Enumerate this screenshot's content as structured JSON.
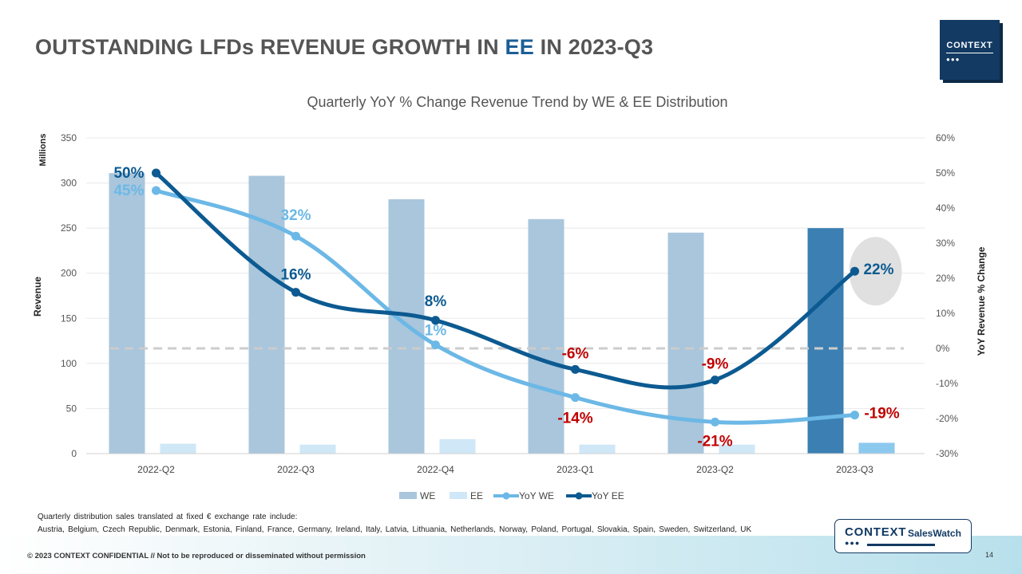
{
  "slide": {
    "title_pre": "OUTSTANDING LFDs REVENUE GROWTH IN",
    "title_hl": "EE",
    "title_post": "IN 2023-Q3",
    "page_number": "14",
    "footer_text": "© 2023 CONTEXT CONFIDENTIAL // Not to be reproduced or disseminated without permission",
    "note_line1": "Quarterly distribution sales translated at fixed € exchange rate include:",
    "note_line2": "Austria, Belgium, Czech Republic, Denmark, Estonia, Finland, France, Germany, Ireland, Italy, Latvia, Lithuania, Netherlands, Norway, Poland, Portugal, Slovakia, Spain, Sweden, Switzerland, UK",
    "logo_text": "CONTEXT",
    "logo_dots": "●●●",
    "saleswatch_brand": "CONTEXT",
    "saleswatch_label": "SalesWatch",
    "saleswatch_dots": "●●●"
  },
  "colors": {
    "we_bar": "#a9c6dc",
    "ee_bar": "#cfe7f6",
    "ee_bar_highlight": "#3b7fb3",
    "we_bar_highlight": "#8cc9ee",
    "yoy_we": "#6cb8e6",
    "yoy_ee": "#0c5a91",
    "negative_label": "#c00000",
    "zero_line": "#cccccc",
    "highlight_circle": "#e0e0e0"
  },
  "chart_data": {
    "type": "bar",
    "title": "Quarterly YoY % Change Revenue Trend by WE & EE Distribution",
    "categories": [
      "2022-Q2",
      "2022-Q3",
      "2022-Q4",
      "2023-Q1",
      "2023-Q2",
      "2023-Q3"
    ],
    "ylabel": "Revenue",
    "ylabel_units": "Millions",
    "y2label": "YoY Revenue % Change",
    "ylim": [
      0,
      350
    ],
    "y_ticks": [
      0,
      50,
      100,
      150,
      200,
      250,
      300,
      350
    ],
    "y2lim": [
      -30,
      60
    ],
    "y2_ticks": [
      -30,
      -20,
      -10,
      0,
      10,
      20,
      30,
      40,
      50,
      60
    ],
    "y2_tick_labels": [
      "-30%",
      "-20%",
      "-10%",
      "0%",
      "10%",
      "20%",
      "30%",
      "40%",
      "50%",
      "60%"
    ],
    "series": [
      {
        "name": "WE",
        "type": "bar",
        "axis": "left",
        "values": [
          311,
          308,
          282,
          260,
          245,
          250
        ]
      },
      {
        "name": "EE",
        "type": "bar",
        "axis": "left",
        "values": [
          11,
          10,
          16,
          10,
          10,
          12
        ]
      },
      {
        "name": "YoY WE",
        "type": "line",
        "axis": "right",
        "values": [
          45,
          32,
          1,
          -14,
          -21,
          -19
        ],
        "labels": [
          "45%",
          "32%",
          "1%",
          "-14%",
          "-21%",
          "-19%"
        ]
      },
      {
        "name": "YoY EE",
        "type": "line",
        "axis": "right",
        "values": [
          50,
          16,
          8,
          -6,
          -9,
          22
        ],
        "labels": [
          "50%",
          "16%",
          "8%",
          "-6%",
          "-9%",
          "22%"
        ]
      }
    ],
    "legend": [
      "WE",
      "EE",
      "YoY WE",
      "YoY EE"
    ],
    "legend_position": "bottom",
    "highlight_category": "2023-Q3"
  }
}
